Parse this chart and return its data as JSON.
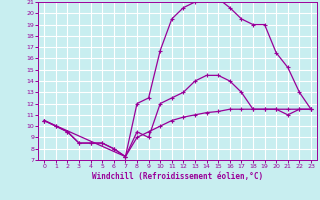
{
  "xlabel": "Windchill (Refroidissement éolien,°C)",
  "bg_color": "#c8eef0",
  "grid_color": "#ffffff",
  "line_color": "#990099",
  "xlim": [
    -0.5,
    23.5
  ],
  "ylim": [
    7,
    21
  ],
  "xticks": [
    0,
    1,
    2,
    3,
    4,
    5,
    6,
    7,
    8,
    9,
    10,
    11,
    12,
    13,
    14,
    15,
    16,
    17,
    18,
    19,
    20,
    21,
    22,
    23
  ],
  "yticks": [
    7,
    8,
    9,
    10,
    11,
    12,
    13,
    14,
    15,
    16,
    17,
    18,
    19,
    20,
    21
  ],
  "line_upper_x": [
    0,
    1,
    2,
    3,
    4,
    5,
    6,
    7,
    8,
    9,
    10,
    11,
    12,
    13,
    14,
    15,
    16,
    17,
    18,
    19,
    20,
    21,
    22,
    23
  ],
  "line_upper_y": [
    10.5,
    10.0,
    9.5,
    8.5,
    8.5,
    8.5,
    8.0,
    7.3,
    12.0,
    12.5,
    16.7,
    19.5,
    20.5,
    21.0,
    21.2,
    21.3,
    20.5,
    19.5,
    19.0,
    19.0,
    16.5,
    15.2,
    13.0,
    11.5
  ],
  "line_mid_x": [
    0,
    1,
    2,
    3,
    4,
    5,
    6,
    7,
    8,
    9,
    10,
    11,
    12,
    13,
    14,
    15,
    16,
    17,
    18,
    19,
    20,
    21,
    22,
    23
  ],
  "line_mid_y": [
    10.5,
    10.0,
    9.5,
    8.5,
    8.5,
    8.5,
    8.0,
    7.3,
    9.5,
    9.0,
    12.0,
    12.5,
    13.0,
    14.0,
    14.5,
    14.5,
    14.0,
    13.0,
    11.5,
    11.5,
    11.5,
    11.0,
    11.5,
    11.5
  ],
  "line_low_x": [
    0,
    7,
    8,
    9,
    10,
    11,
    12,
    13,
    14,
    15,
    16,
    17,
    18,
    19,
    20,
    21,
    22,
    23
  ],
  "line_low_y": [
    10.5,
    7.3,
    9.0,
    9.5,
    10.0,
    10.5,
    10.8,
    11.0,
    11.2,
    11.3,
    11.5,
    11.5,
    11.5,
    11.5,
    11.5,
    11.5,
    11.5,
    11.5
  ]
}
